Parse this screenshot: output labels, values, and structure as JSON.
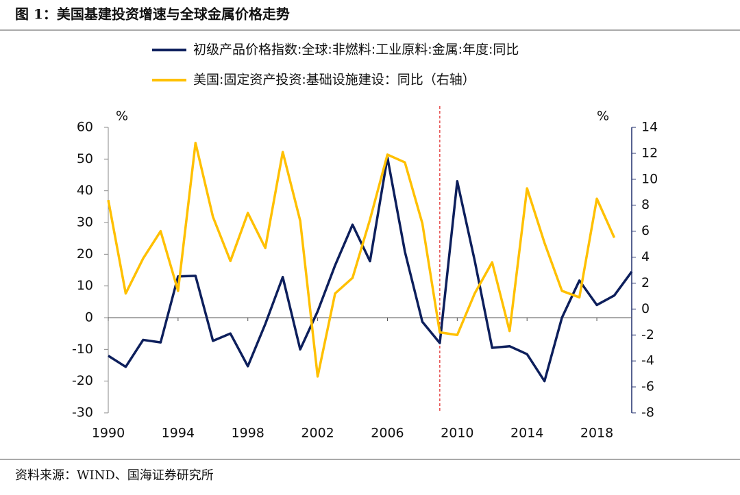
{
  "chart_data": {
    "type": "line",
    "title": "图 1：美国基建投资增速与全球金属价格走势",
    "source": "资料来源：WIND、国海证券研究所",
    "y_unit": "%",
    "y2_unit": "%",
    "x": [
      1990,
      1991,
      1992,
      1993,
      1994,
      1995,
      1996,
      1997,
      1998,
      1999,
      2000,
      2001,
      2002,
      2003,
      2004,
      2005,
      2006,
      2007,
      2008,
      2009,
      2010,
      2011,
      2012,
      2013,
      2014,
      2015,
      2016,
      2017,
      2018,
      2019,
      2020
    ],
    "series": [
      {
        "name": "初级产品价格指数:全球:非燃料:工业原料:金属:年度:同比",
        "color": "#0d1f5c",
        "values": [
          -12,
          -15.5,
          -7,
          -7.8,
          13,
          13.2,
          -7.3,
          -5,
          -15.3,
          -2,
          12.8,
          -10,
          2,
          16.5,
          29.3,
          17.8,
          50.5,
          20.8,
          -1.3,
          -8,
          43,
          18,
          -9.5,
          -9,
          -11.5,
          -20,
          0,
          11.7,
          4,
          7,
          14.5
        ]
      },
      {
        "name": "美国:固定资产投资:基础设施建设：同比（右轴）",
        "color": "#ffc000",
        "axis": "y2",
        "values": [
          8.4,
          1.2,
          3.9,
          6,
          1.4,
          12.8,
          7.1,
          3.7,
          7.4,
          4.7,
          12.1,
          6.8,
          -5.2,
          1.2,
          2.4,
          6.9,
          11.9,
          11.3,
          6.6,
          -1.8,
          -2,
          1.2,
          3.6,
          -1.7,
          9.3,
          5.1,
          1.4,
          0.9,
          8.5,
          5.5,
          null
        ]
      }
    ],
    "xlim": [
      1990,
      2020
    ],
    "xticks": [
      1990,
      1994,
      1998,
      2002,
      2006,
      2010,
      2014,
      2018
    ],
    "ylim": [
      -30,
      60
    ],
    "yticks": [
      -30,
      -20,
      -10,
      0,
      10,
      20,
      30,
      40,
      50,
      60
    ],
    "y2lim": [
      -8,
      14
    ],
    "y2ticks": [
      -8,
      -6,
      -4,
      -2,
      0,
      2,
      4,
      6,
      8,
      10,
      12,
      14
    ],
    "vline_x": 2009,
    "vline_color": "#e02020",
    "grid": false
  }
}
